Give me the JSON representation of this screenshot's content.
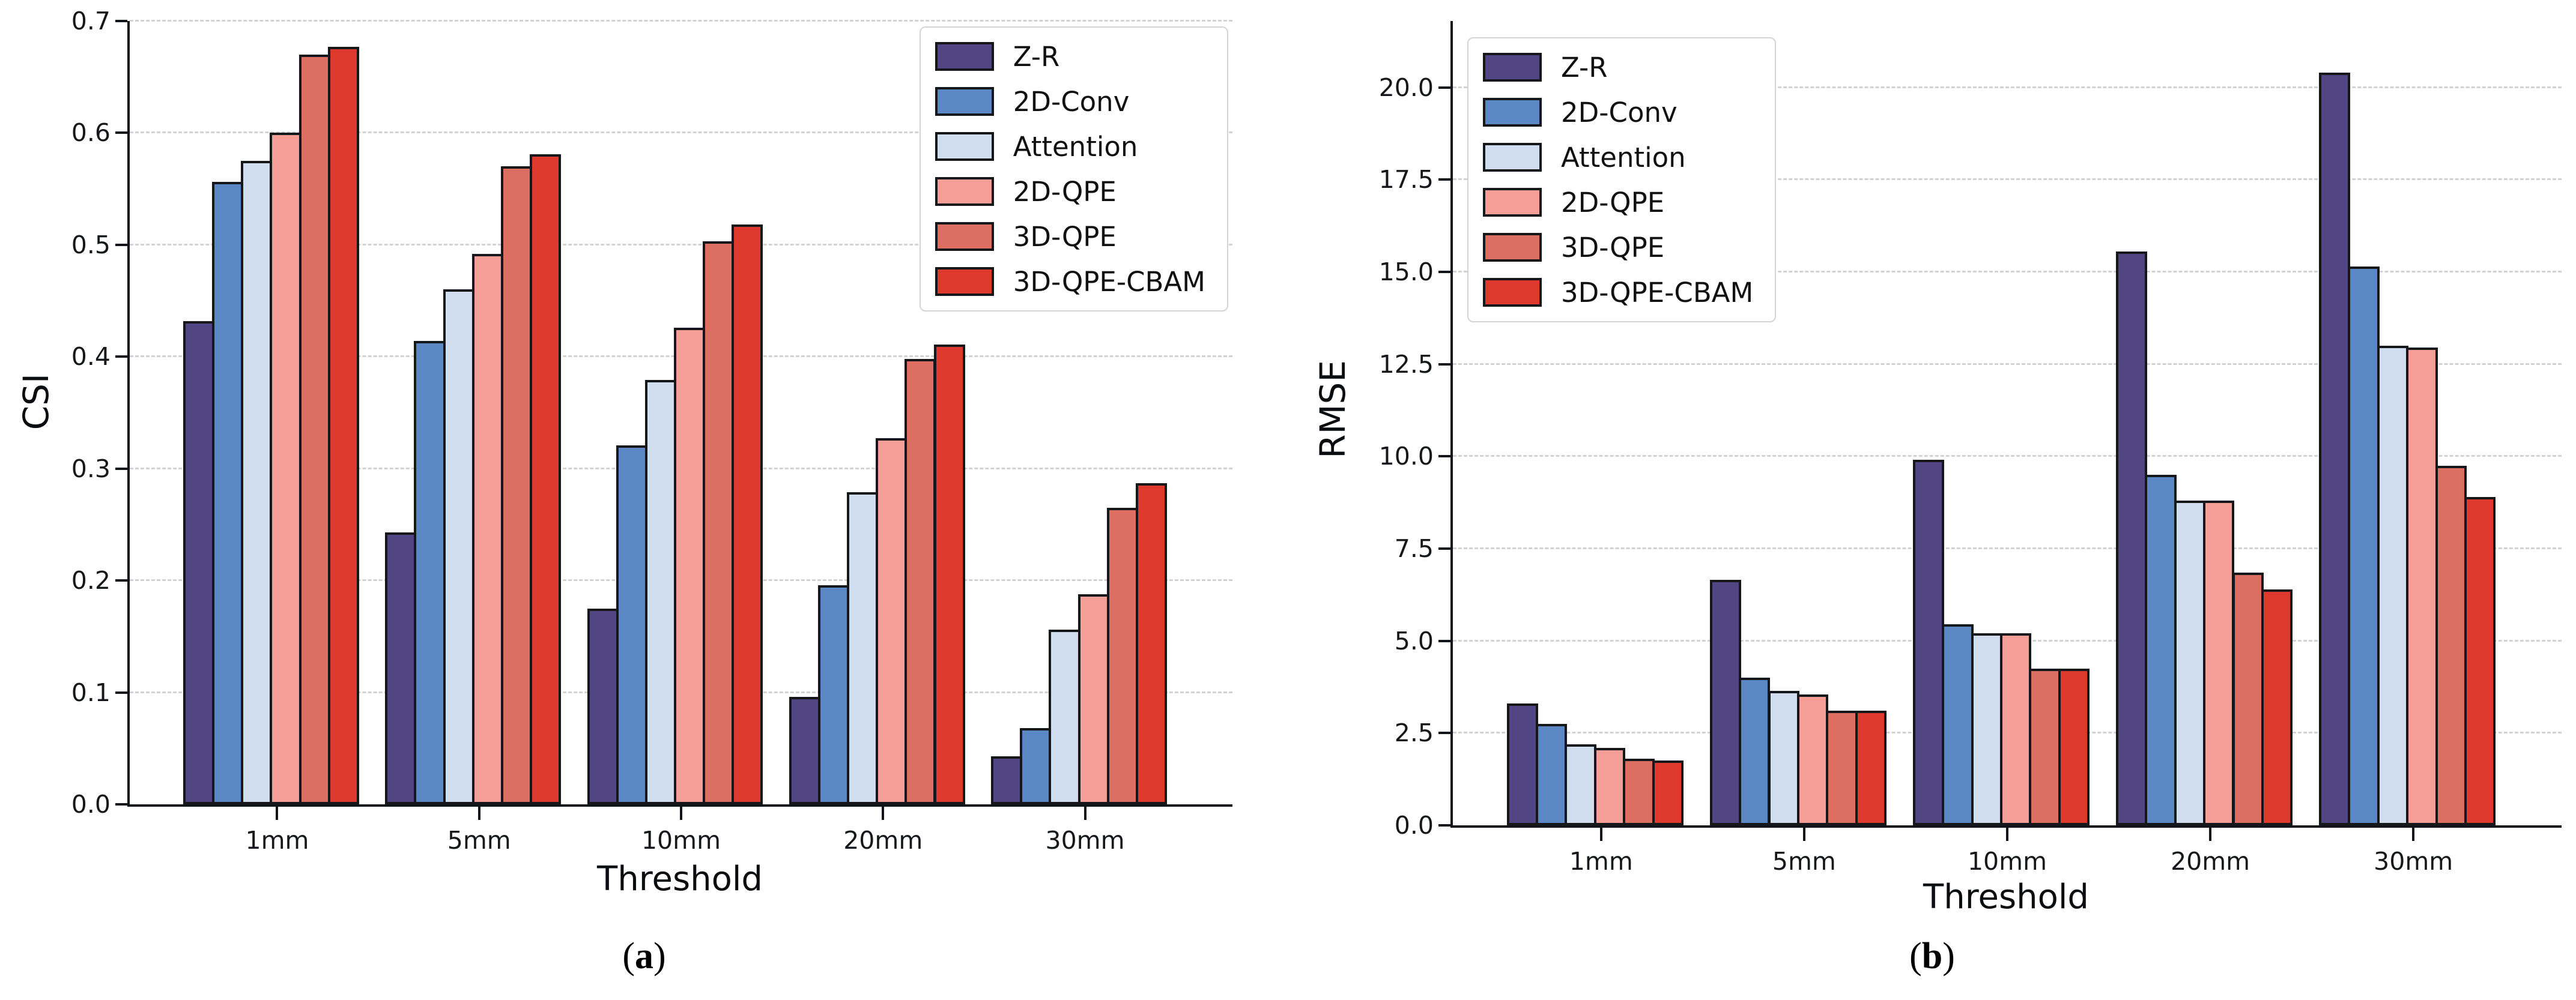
{
  "figure": {
    "background": "#ffffff",
    "axis_color": "#111418",
    "grid_color": "#d2d2d2",
    "bar_edge_color": "#16171b"
  },
  "chart_data": [
    {
      "type": "bar",
      "panel": "a",
      "caption": {
        "open": "(",
        "label": "a",
        "close": ")"
      },
      "ylabel": "CSI",
      "xlabel": "Threshold",
      "categories": [
        "1mm",
        "5mm",
        "10mm",
        "20mm",
        "30mm"
      ],
      "ylim": [
        0,
        0.7
      ],
      "ytick_values": [
        0.0,
        0.1,
        0.2,
        0.3,
        0.4,
        0.5,
        0.6,
        0.7
      ],
      "ytick_labels": [
        "0.0",
        "0.1",
        "0.2",
        "0.3",
        "0.4",
        "0.5",
        "0.6",
        "0.7"
      ],
      "grid": {
        "axis": "y",
        "style": "dashed"
      },
      "legend_position": "upper-right",
      "series": [
        {
          "name": "Z-R",
          "color": "#514683",
          "values": [
            0.432,
            0.243,
            0.175,
            0.096,
            0.043
          ]
        },
        {
          "name": "2D-Conv",
          "color": "#5b87c5",
          "values": [
            0.556,
            0.414,
            0.321,
            0.196,
            0.068
          ]
        },
        {
          "name": "Attention",
          "color": "#cfddee",
          "values": [
            0.575,
            0.46,
            0.379,
            0.279,
            0.156
          ]
        },
        {
          "name": "2D-QPE",
          "color": "#f49e97",
          "values": [
            0.6,
            0.492,
            0.426,
            0.327,
            0.188
          ]
        },
        {
          "name": "3D-QPE",
          "color": "#dd6e62",
          "values": [
            0.67,
            0.57,
            0.503,
            0.398,
            0.265
          ]
        },
        {
          "name": "3D-QPE-CBAM",
          "color": "#dd392d",
          "values": [
            0.677,
            0.581,
            0.518,
            0.411,
            0.287
          ]
        }
      ]
    },
    {
      "type": "bar",
      "panel": "b",
      "caption": {
        "open": "(",
        "label": "b",
        "close": ")"
      },
      "ylabel": "RMSE",
      "xlabel": "Threshold",
      "categories": [
        "1mm",
        "5mm",
        "10mm",
        "20mm",
        "30mm"
      ],
      "ylim": [
        0,
        21.8
      ],
      "ytick_values": [
        0.0,
        2.5,
        5.0,
        7.5,
        10.0,
        12.5,
        15.0,
        17.5,
        20.0
      ],
      "ytick_labels": [
        "0.0",
        "2.5",
        "5.0",
        "7.5",
        "10.0",
        "12.5",
        "15.0",
        "17.5",
        "20.0"
      ],
      "grid": {
        "axis": "y",
        "style": "dashed"
      },
      "legend_position": "upper-left",
      "series": [
        {
          "name": "Z-R",
          "color": "#514683",
          "values": [
            3.3,
            6.65,
            9.9,
            15.55,
            20.4
          ]
        },
        {
          "name": "2D-Conv",
          "color": "#5b87c5",
          "values": [
            2.75,
            4.0,
            5.45,
            9.5,
            15.15
          ]
        },
        {
          "name": "Attention",
          "color": "#cfddee",
          "values": [
            2.2,
            3.65,
            5.2,
            8.8,
            13.0
          ]
        },
        {
          "name": "2D-QPE",
          "color": "#f49e97",
          "values": [
            2.1,
            3.55,
            5.2,
            8.8,
            12.95
          ]
        },
        {
          "name": "3D-QPE",
          "color": "#dd6e62",
          "values": [
            1.8,
            3.1,
            4.25,
            6.85,
            9.75
          ]
        },
        {
          "name": "3D-QPE-CBAM",
          "color": "#dd392d",
          "values": [
            1.75,
            3.1,
            4.25,
            6.4,
            8.9
          ]
        }
      ]
    }
  ]
}
